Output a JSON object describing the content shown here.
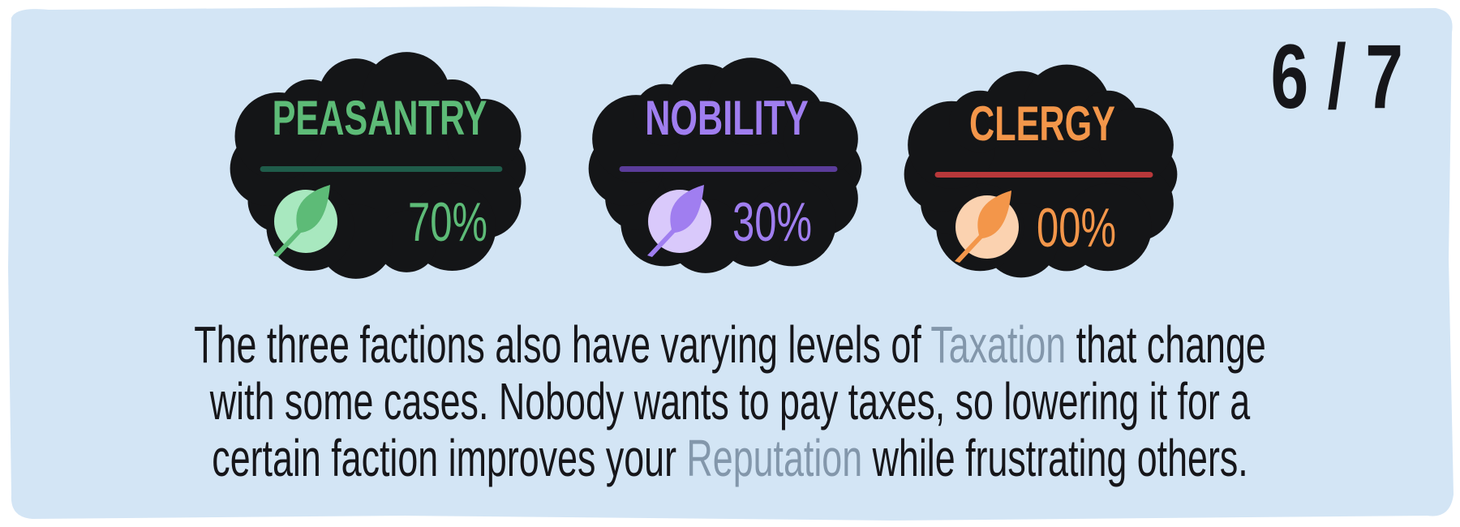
{
  "counter": "6 / 7",
  "factions": [
    {
      "name": "PEASANTRY",
      "tax": "70%"
    },
    {
      "name": "NOBILITY",
      "tax": "30%"
    },
    {
      "name": "CLERGY",
      "tax": "00%"
    }
  ],
  "description": {
    "parts": [
      "The three factions also have varying levels of ",
      "Taxation",
      " that change",
      "with some cases. Nobody wants to pay taxes, so lowering it for a",
      "certain faction improves your ",
      "Reputation",
      " while frustrating others."
    ]
  }
}
